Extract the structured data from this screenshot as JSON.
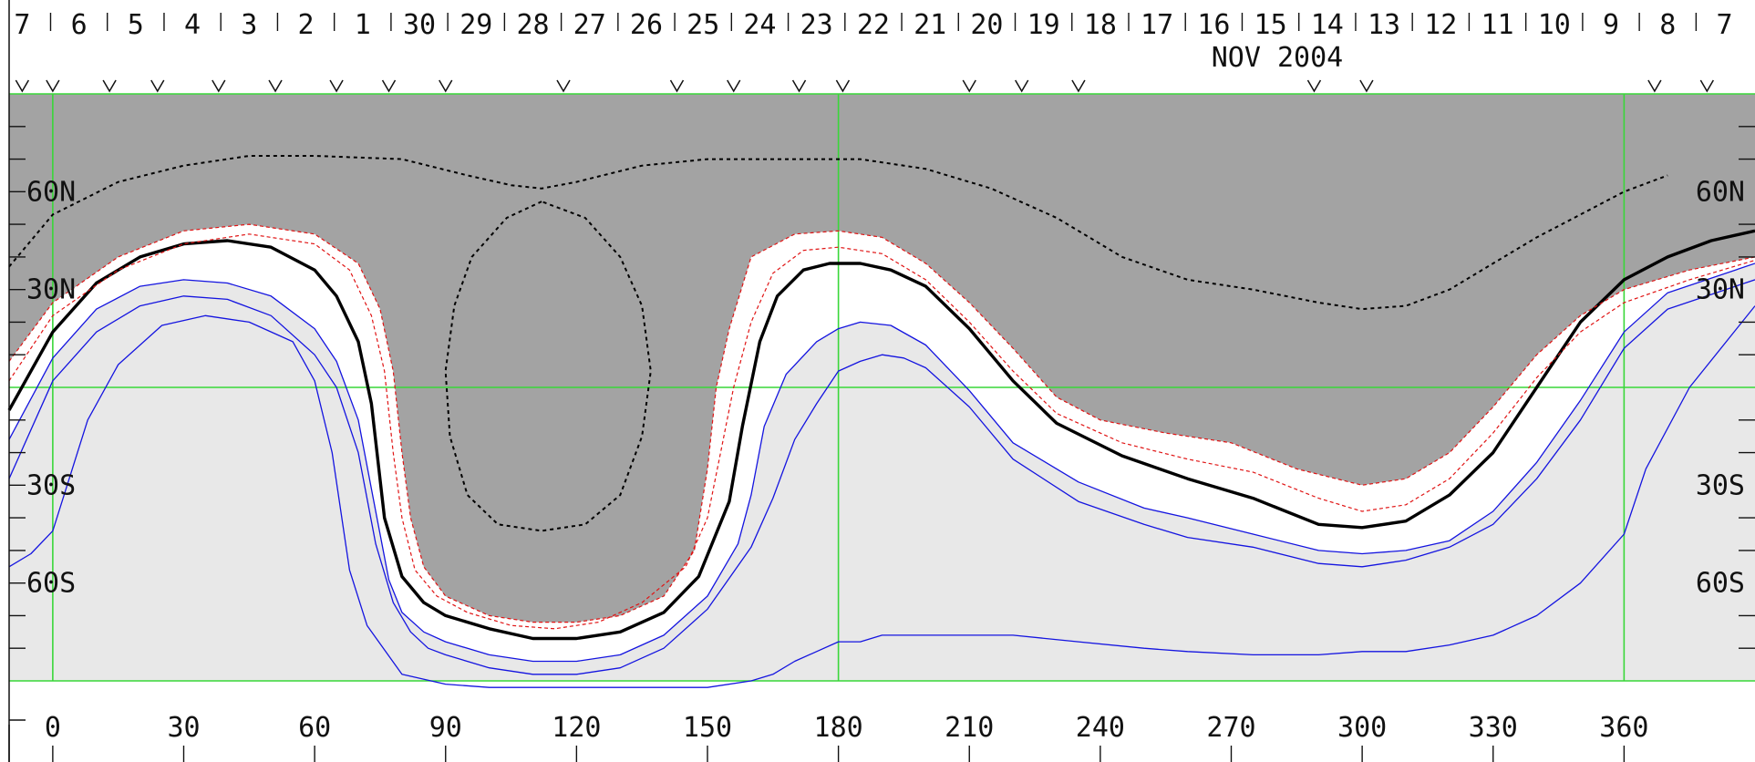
{
  "chart_data": {
    "type": "line",
    "title": "NOV 2004",
    "colors": {
      "dark_shade": "#a3a3a3",
      "light_shade": "#e8e8e8",
      "grid": "#39d739",
      "blue": "#1414e0",
      "red": "#e01414",
      "black": "#000000",
      "background": "#ffffff"
    },
    "xlim": [
      -10,
      390
    ],
    "ylim": [
      -90,
      90
    ],
    "grid": true,
    "x_ticks": [
      0,
      30,
      60,
      90,
      120,
      150,
      180,
      210,
      240,
      270,
      300,
      330,
      360
    ],
    "x_tick_labels": [
      "0",
      "30",
      "60",
      "90",
      "120",
      "150",
      "180",
      "210",
      "240",
      "270",
      "300",
      "330",
      "360"
    ],
    "grid_x": [
      0,
      180,
      360
    ],
    "grid_y": [
      0
    ],
    "y_tick_values": [
      60,
      30,
      -30,
      -60
    ],
    "y_tick_labels": [
      "60N",
      "30N",
      "30S",
      "60S"
    ],
    "y_minor_ticks": [
      80,
      70,
      50,
      40,
      20,
      10,
      -10,
      -20,
      -40,
      -50,
      -70,
      -80
    ],
    "date_labels": [
      "7",
      "6",
      "5",
      "4",
      "3",
      "2",
      "1",
      "30",
      "29",
      "28",
      "27",
      "26",
      "25",
      "24",
      "23",
      "22",
      "21",
      "20",
      "19",
      "18",
      "17",
      "16",
      "15",
      "14",
      "13",
      "12",
      "11",
      "10",
      "9",
      "8",
      "7"
    ],
    "date_x": [
      -7,
      6,
      19,
      32,
      45,
      58,
      71,
      84,
      97,
      110,
      123,
      136,
      149,
      162,
      175,
      188,
      201,
      214,
      227,
      240,
      253,
      266,
      279,
      292,
      305,
      318,
      331,
      344,
      357,
      370,
      383
    ],
    "markers_x": [
      -7,
      0,
      13,
      24,
      38,
      51,
      65,
      77,
      90,
      117,
      143,
      156,
      171,
      181,
      210,
      222,
      235,
      289,
      301,
      367,
      379
    ],
    "series": [
      {
        "style": "solid-thick",
        "x": [
          -10,
          0,
          10,
          20,
          30,
          40,
          50,
          60,
          65,
          70,
          73,
          76,
          80,
          85,
          90,
          100,
          110,
          120,
          130,
          140,
          148,
          155,
          158,
          162,
          166,
          172,
          178,
          185,
          192,
          200,
          210,
          220,
          230,
          245,
          260,
          275,
          290,
          300,
          310,
          320,
          330,
          340,
          350,
          360,
          370,
          380,
          390
        ],
        "y": [
          -7,
          17,
          32,
          40,
          44,
          45,
          43,
          36,
          28,
          14,
          -5,
          -40,
          -58,
          -66,
          -70,
          -74,
          -77,
          -77,
          -75,
          -69,
          -58,
          -35,
          -12,
          14,
          28,
          36,
          38,
          38,
          36,
          31,
          18,
          2,
          -11,
          -21,
          -28,
          -34,
          -42,
          -43,
          -41,
          -33,
          -20,
          0,
          20,
          33,
          40,
          45,
          48
        ]
      },
      {
        "style": "blue",
        "x": [
          -10,
          0,
          10,
          20,
          30,
          40,
          50,
          60,
          65,
          70,
          74,
          77,
          80,
          85,
          90,
          100,
          110,
          120,
          130,
          140,
          150,
          157,
          160,
          163,
          168,
          175,
          180,
          185,
          192,
          200,
          210,
          220,
          235,
          250,
          260,
          275,
          290,
          300,
          310,
          320,
          330,
          340,
          350,
          360,
          370,
          390
        ],
        "y": [
          -16,
          9,
          24,
          31,
          33,
          32,
          28,
          18,
          8,
          -10,
          -38,
          -59,
          -69,
          -75,
          -78,
          -82,
          -84,
          -84,
          -82,
          -76,
          -64,
          -48,
          -33,
          -12,
          4,
          14,
          18,
          20,
          19,
          13,
          -1,
          -17,
          -29,
          -37,
          -40,
          -45,
          -50,
          -51,
          -50,
          -47,
          -38,
          -23,
          -4,
          17,
          29,
          38
        ]
      },
      {
        "style": "blue",
        "x": [
          -10,
          0,
          10,
          20,
          30,
          40,
          50,
          60,
          65,
          70,
          74,
          78,
          82,
          86,
          90,
          100,
          110,
          120,
          130,
          140,
          150,
          160,
          165,
          170,
          175,
          180,
          185,
          190,
          195,
          200,
          210,
          220,
          235,
          250,
          260,
          275,
          290,
          300,
          310,
          320,
          330,
          340,
          350,
          360,
          370,
          390
        ],
        "y": [
          -28,
          2,
          17,
          25,
          28,
          27,
          22,
          10,
          0,
          -20,
          -48,
          -66,
          -75,
          -80,
          -82,
          -86,
          -88,
          -88,
          -86,
          -80,
          -68,
          -49,
          -34,
          -16,
          -5,
          5,
          8,
          10,
          9,
          6,
          -6,
          -22,
          -35,
          -42,
          -46,
          -49,
          -54,
          -55,
          -53,
          -49,
          -42,
          -28,
          -10,
          12,
          24,
          33
        ]
      },
      {
        "style": "blue",
        "x": [
          -10,
          -5,
          0,
          8,
          15,
          25,
          35,
          45,
          55,
          60,
          64,
          68,
          72,
          80,
          90,
          100,
          110,
          120,
          130,
          140,
          150,
          160,
          165,
          170,
          175,
          180,
          185,
          190,
          195,
          200,
          210,
          220,
          235,
          250,
          260,
          275,
          290,
          300,
          310,
          320,
          330,
          340,
          350,
          360,
          365,
          375,
          390
        ],
        "y": [
          -55,
          -51,
          -44,
          -10,
          7,
          19,
          22,
          20,
          14,
          2,
          -20,
          -56,
          -73,
          -88,
          -91,
          -92,
          -92,
          -92,
          -92,
          -92,
          -92,
          -90,
          -88,
          -84,
          -81,
          -78,
          -78,
          -76,
          -76,
          -76,
          -76,
          -76,
          -78,
          -80,
          -81,
          -82,
          -82,
          -81,
          -81,
          -79,
          -76,
          -70,
          -60,
          -45,
          -25,
          0,
          25
        ]
      },
      {
        "style": "red-dashed",
        "x": [
          -10,
          0,
          15,
          30,
          45,
          60,
          70,
          75,
          78,
          80,
          82,
          85,
          90,
          100,
          110,
          120,
          130,
          140,
          147,
          150,
          152,
          155,
          160,
          170,
          180,
          190,
          200,
          210,
          220,
          230,
          240,
          255,
          270,
          285,
          300,
          310,
          320,
          330,
          340,
          350,
          360,
          375,
          390
        ],
        "y": [
          8,
          26,
          40,
          48,
          50,
          47,
          38,
          24,
          5,
          -20,
          -40,
          -55,
          -64,
          -70,
          -72,
          -72,
          -70,
          -64,
          -50,
          -25,
          0,
          18,
          40,
          47,
          48,
          46,
          38,
          26,
          12,
          -3,
          -10,
          -14,
          -17,
          -25,
          -30,
          -28,
          -20,
          -6,
          10,
          22,
          30,
          36,
          40
        ]
      },
      {
        "style": "red-dashed",
        "x": [
          -10,
          0,
          15,
          30,
          45,
          60,
          68,
          73,
          76,
          78,
          80,
          83,
          88,
          95,
          105,
          115,
          125,
          135,
          145,
          150,
          153,
          156,
          160,
          165,
          172,
          180,
          190,
          200,
          210,
          220,
          230,
          245,
          260,
          275,
          290,
          300,
          310,
          320,
          330,
          340,
          350,
          360,
          375,
          390
        ],
        "y": [
          2,
          22,
          36,
          44,
          47,
          44,
          36,
          22,
          5,
          -20,
          -40,
          -56,
          -64,
          -69,
          -73,
          -74,
          -72,
          -66,
          -55,
          -40,
          -20,
          0,
          20,
          35,
          42,
          43,
          41,
          33,
          20,
          5,
          -8,
          -17,
          -22,
          -26,
          -34,
          -38,
          -36,
          -28,
          -14,
          3,
          17,
          26,
          33,
          39
        ]
      },
      {
        "style": "black-dashed",
        "x": [
          -10,
          0,
          15,
          30,
          45,
          60,
          80,
          95,
          105,
          112,
          120,
          135,
          150,
          170,
          185,
          200,
          215,
          230,
          245,
          260,
          275,
          290,
          300,
          310,
          320,
          330,
          340,
          350,
          360,
          370
        ],
        "y": [
          37,
          53,
          63,
          68,
          71,
          71,
          70,
          65,
          62,
          61,
          63,
          68,
          70,
          70,
          70,
          67,
          61,
          52,
          40,
          33,
          30,
          26,
          24,
          25,
          30,
          38,
          46,
          53,
          60,
          65
        ]
      },
      {
        "style": "black-dashed",
        "x": [
          112,
          104,
          96,
          92,
          90,
          91,
          95,
          102,
          112,
          122,
          130,
          135,
          137,
          135,
          130,
          122,
          112
        ],
        "y": [
          57,
          52,
          40,
          25,
          5,
          -15,
          -33,
          -42,
          -44,
          -42,
          -33,
          -15,
          5,
          25,
          40,
          52,
          57
        ]
      }
    ]
  }
}
